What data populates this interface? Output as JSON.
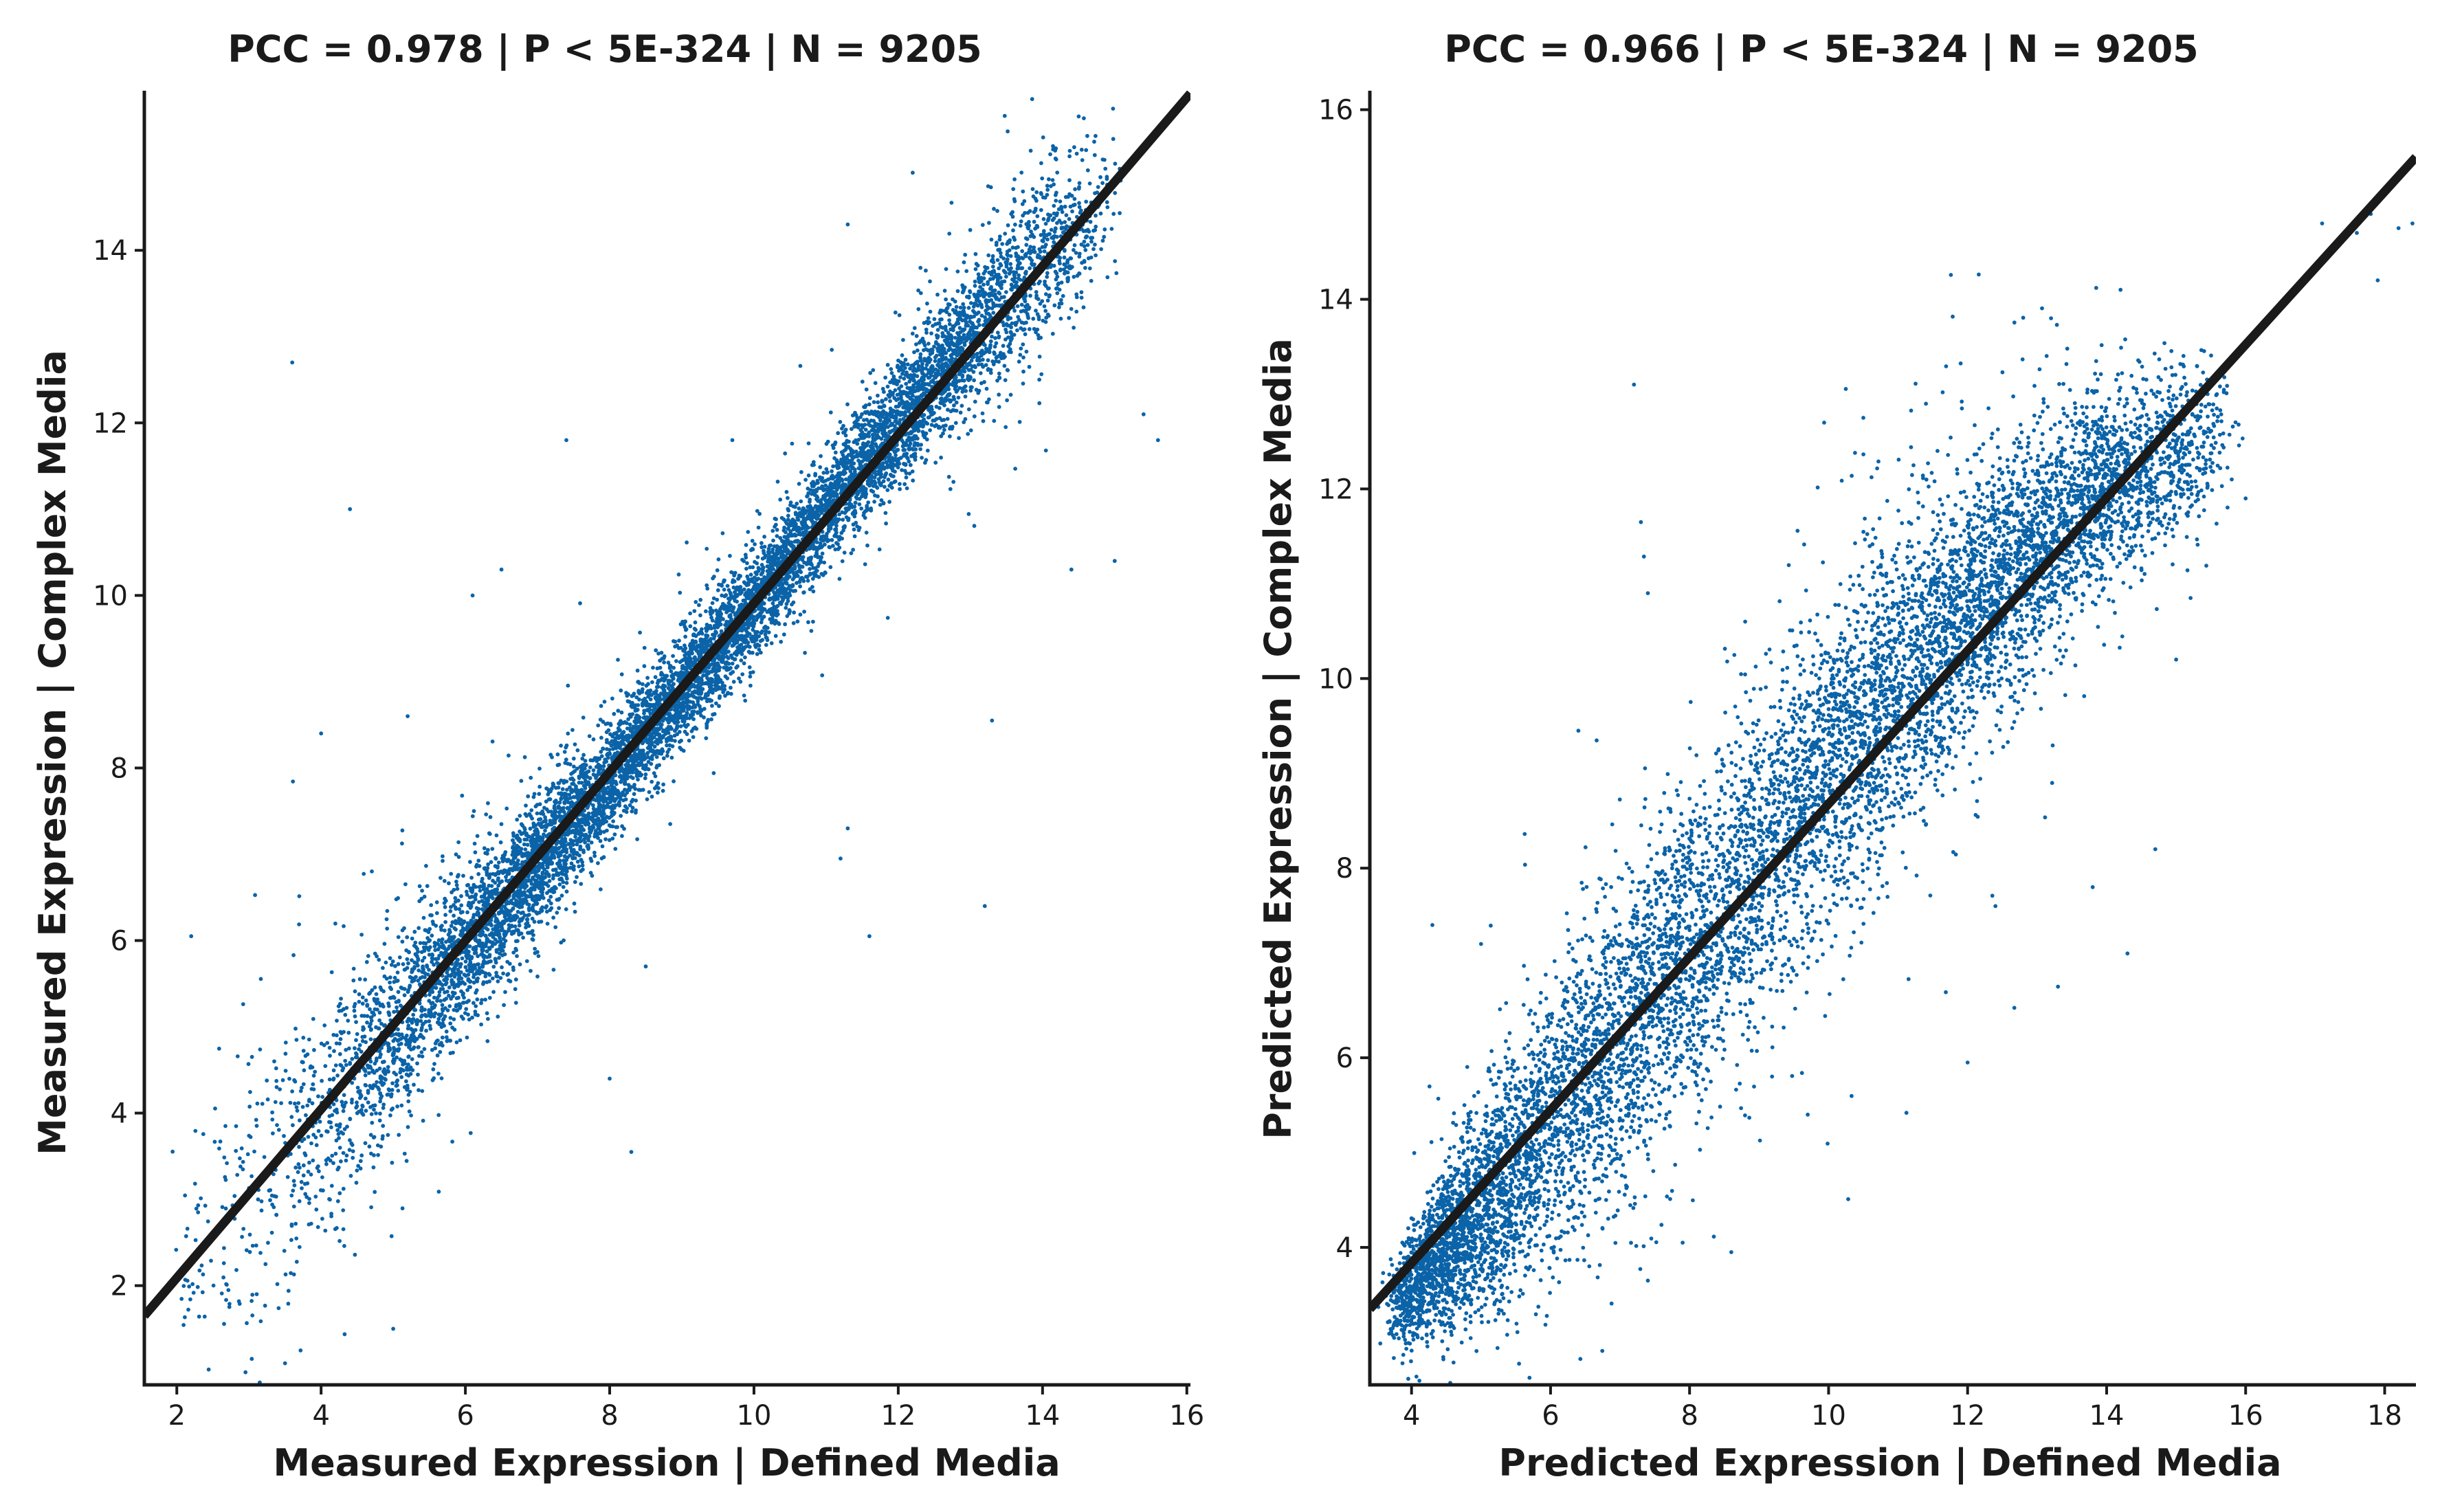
{
  "chart_data": [
    {
      "type": "scatter",
      "title": "PCC =  0.978 | P <  5E-324 | N = 9205",
      "xlabel": "Measured Expression | Defined Media",
      "ylabel": "Measured Expression | Complex Media",
      "xlim": [
        1.55,
        16.05
      ],
      "ylim": [
        0.85,
        15.85
      ],
      "xticks": [
        "2",
        "4",
        "6",
        "8",
        "10",
        "12",
        "14",
        "16"
      ],
      "yticks": [
        "2",
        "4",
        "6",
        "8",
        "10",
        "12",
        "14"
      ],
      "grid": false,
      "legend": "none",
      "point_color": "#0b63a8",
      "line_color": "#1a1a1a",
      "n_points": 9205,
      "fit_line": {
        "x": [
          1.55,
          16.05
        ],
        "y": [
          1.65,
          15.82
        ]
      },
      "cloud_profile": {
        "x": [
          2,
          3,
          4,
          5,
          6,
          7,
          8,
          9,
          10,
          11,
          12,
          13,
          14,
          15
        ],
        "y_center": [
          2.0,
          3.1,
          3.9,
          4.9,
          5.9,
          6.9,
          7.9,
          8.9,
          9.9,
          11.0,
          12.0,
          13.0,
          13.9,
          14.6
        ],
        "y_spread": [
          0.9,
          0.85,
          0.75,
          0.6,
          0.45,
          0.38,
          0.32,
          0.3,
          0.3,
          0.32,
          0.35,
          0.4,
          0.5,
          0.6
        ],
        "density": [
          0.04,
          0.12,
          0.3,
          0.55,
          0.8,
          0.95,
          1.0,
          0.95,
          0.9,
          0.95,
          1.0,
          0.85,
          0.45,
          0.1
        ]
      },
      "outliers": [
        {
          "x": 3.6,
          "y": 12.7
        },
        {
          "x": 4.4,
          "y": 11.0
        },
        {
          "x": 12.2,
          "y": 14.9
        },
        {
          "x": 15.6,
          "y": 11.8
        },
        {
          "x": 15.4,
          "y": 12.1
        },
        {
          "x": 13.3,
          "y": 8.55
        },
        {
          "x": 13.2,
          "y": 6.4
        },
        {
          "x": 11.6,
          "y": 6.05
        },
        {
          "x": 11.3,
          "y": 7.3
        },
        {
          "x": 11.2,
          "y": 6.95
        },
        {
          "x": 8.3,
          "y": 3.55
        },
        {
          "x": 8.0,
          "y": 4.4
        },
        {
          "x": 5.0,
          "y": 1.5
        },
        {
          "x": 7.4,
          "y": 11.8
        },
        {
          "x": 6.5,
          "y": 10.3
        },
        {
          "x": 3.5,
          "y": 1.1
        },
        {
          "x": 4.0,
          "y": 8.4
        },
        {
          "x": 15.0,
          "y": 10.4
        },
        {
          "x": 14.4,
          "y": 10.3
        },
        {
          "x": 9.7,
          "y": 11.8
        },
        {
          "x": 11.3,
          "y": 14.3
        },
        {
          "x": 10.5,
          "y": 10.0
        },
        {
          "x": 2.2,
          "y": 6.05
        },
        {
          "x": 8.5,
          "y": 5.7
        },
        {
          "x": 5.2,
          "y": 8.6
        },
        {
          "x": 12.6,
          "y": 13.2
        },
        {
          "x": 14.9,
          "y": 14.5
        },
        {
          "x": 6.1,
          "y": 10.0
        }
      ]
    },
    {
      "type": "scatter",
      "title": "PCC =  0.966 | P <  5E-324 | N = 9205",
      "xlabel": "Predicted Expression | Defined Media",
      "ylabel": "Predicted Expression | Complex Media",
      "xlim": [
        3.4,
        18.45
      ],
      "ylim": [
        2.55,
        16.2
      ],
      "xticks": [
        "4",
        "6",
        "8",
        "10",
        "12",
        "14",
        "16",
        "18"
      ],
      "yticks": [
        "4",
        "6",
        "8",
        "10",
        "12",
        "14",
        "16"
      ],
      "grid": false,
      "legend": "none",
      "point_color": "#0b63a8",
      "line_color": "#1a1a1a",
      "n_points": 9205,
      "fit_line": {
        "x": [
          3.4,
          18.45
        ],
        "y": [
          3.35,
          15.5
        ]
      },
      "cloud_profile": {
        "x": [
          3.8,
          4.2,
          5,
          6,
          7,
          8,
          9,
          10,
          11,
          12,
          13,
          14,
          15,
          15.8
        ],
        "y_center": [
          3.4,
          3.75,
          4.4,
          5.3,
          6.2,
          7.2,
          8.1,
          9.0,
          9.9,
          10.7,
          11.4,
          12.0,
          12.4,
          12.6
        ],
        "y_spread": [
          0.25,
          0.35,
          0.55,
          0.7,
          0.8,
          0.85,
          0.85,
          0.85,
          0.8,
          0.7,
          0.6,
          0.5,
          0.45,
          0.4
        ],
        "density": [
          0.6,
          1.0,
          0.9,
          0.7,
          0.6,
          0.6,
          0.6,
          0.62,
          0.66,
          0.7,
          0.7,
          0.6,
          0.35,
          0.1
        ]
      },
      "outliers": [
        {
          "x": 7.2,
          "y": 13.1
        },
        {
          "x": 7.3,
          "y": 11.65
        },
        {
          "x": 10.5,
          "y": 12.75
        },
        {
          "x": 12.3,
          "y": 12.85
        },
        {
          "x": 13.2,
          "y": 13.8
        },
        {
          "x": 14.2,
          "y": 14.1
        },
        {
          "x": 17.1,
          "y": 14.8
        },
        {
          "x": 17.6,
          "y": 14.7
        },
        {
          "x": 17.8,
          "y": 14.9
        },
        {
          "x": 18.2,
          "y": 14.75
        },
        {
          "x": 17.9,
          "y": 14.2
        },
        {
          "x": 18.4,
          "y": 14.8
        },
        {
          "x": 6.4,
          "y": 9.45
        },
        {
          "x": 7.4,
          "y": 10.9
        },
        {
          "x": 8.8,
          "y": 10.6
        },
        {
          "x": 12.0,
          "y": 5.95
        },
        {
          "x": 9.7,
          "y": 5.4
        },
        {
          "x": 8.6,
          "y": 3.95
        },
        {
          "x": 7.9,
          "y": 4.05
        },
        {
          "x": 7.4,
          "y": 3.65
        },
        {
          "x": 6.8,
          "y": 4.5
        },
        {
          "x": 16.0,
          "y": 11.9
        },
        {
          "x": 15.8,
          "y": 12.1
        },
        {
          "x": 13.3,
          "y": 6.75
        },
        {
          "x": 14.3,
          "y": 7.1
        },
        {
          "x": 14.7,
          "y": 8.2
        },
        {
          "x": 5.0,
          "y": 7.2
        },
        {
          "x": 4.3,
          "y": 7.4
        },
        {
          "x": 15.0,
          "y": 10.2
        },
        {
          "x": 12.4,
          "y": 7.6
        },
        {
          "x": 13.8,
          "y": 7.8
        }
      ]
    }
  ]
}
